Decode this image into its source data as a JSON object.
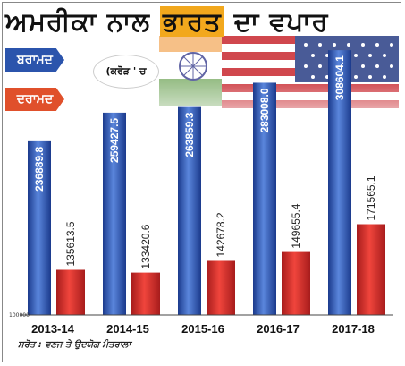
{
  "header": {
    "title_before": "ਅਮਰੀਕਾ ਨਾਲ ",
    "title_highlight": "ਭਾਰਤ",
    "title_after": " ਦਾ ਵਪਾਰ"
  },
  "legend": {
    "export_label": "ਬਰਾਮਦ",
    "import_label": "ਦਰਾਮਦ"
  },
  "unit_note": "(ਕਰੋੜ ' ਚ",
  "footer": {
    "source": "ਸਰੋਤ : ਵਣਜ ਤੇ ਉਦਯੋਗ ਮੰਤਰਾਲਾ"
  },
  "colors": {
    "export": "#2b54ac",
    "import": "#e0302b",
    "title_highlight": "#f2a81d"
  },
  "chart_data": {
    "type": "bar",
    "title": "ਅਮਰੀਕਾ ਨਾਲ ਭਾਰਤ ਦਾ ਵਪਾਰ",
    "categories": [
      "2013-14",
      "2014-15",
      "2015-16",
      "2016-17",
      "2017-18"
    ],
    "series": [
      {
        "name": "ਬਰਾਮਦ",
        "values": [
          236889.8,
          259427.5,
          263859.3,
          283008.0,
          308604.1
        ]
      },
      {
        "name": "ਦਰਾਮਦ",
        "values": [
          135613.5,
          133420.6,
          142678.2,
          149655.4,
          171565.1
        ]
      }
    ],
    "value_labels": {
      "export": [
        "236889.8",
        "259427.5",
        "263859.3",
        "283008.0",
        "308604.1"
      ],
      "import": [
        "135613.5",
        "133420.6",
        "142678.2",
        "149655.4",
        "171565.1"
      ]
    },
    "baseline_label": "100000",
    "ylim": [
      100000,
      320000
    ],
    "xlabel": "",
    "ylabel": "",
    "grid": false,
    "legend_position": "top-left"
  }
}
